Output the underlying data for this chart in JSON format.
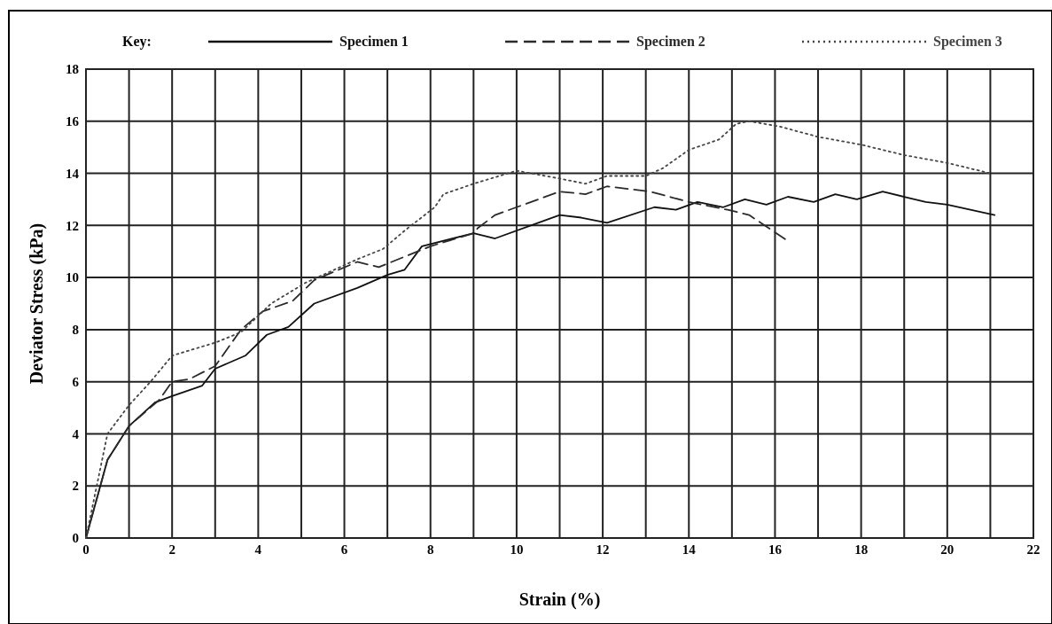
{
  "chart_data": {
    "type": "line",
    "xlabel": "Strain (%)",
    "ylabel": "Deviator Stress (kPa)",
    "legend_title": "Key:",
    "legend": "top",
    "grid": true,
    "marker": "none",
    "xlim": [
      0,
      22
    ],
    "ylim": [
      0,
      18
    ],
    "xticks": [
      0,
      {
        "value": 1,
        "label": null
      },
      2,
      {
        "value": 3,
        "label": null
      },
      4,
      {
        "value": 5,
        "label": null
      },
      6,
      {
        "value": 7,
        "label": null
      },
      8,
      {
        "value": 9,
        "label": null
      },
      10,
      {
        "value": 11,
        "label": null
      },
      12,
      {
        "value": 13,
        "label": null
      },
      14,
      {
        "value": 15,
        "label": null
      },
      16,
      {
        "value": 17,
        "label": null
      },
      18,
      {
        "value": 19,
        "label": null
      },
      20,
      {
        "value": 21,
        "label": null
      },
      22
    ],
    "yticks": [
      0,
      2,
      4,
      6,
      8,
      10,
      12,
      14,
      16,
      18
    ],
    "series": [
      {
        "name": "Specimen 1",
        "color": "#111111",
        "line_style": "solid",
        "x": [
          0,
          0.5,
          1,
          1.6,
          2,
          2.7,
          3,
          3.7,
          4.2,
          4.7,
          5.3,
          6.3,
          7,
          7.4,
          7.8,
          9,
          9.5,
          11,
          11.5,
          12.1,
          13.2,
          13.7,
          14.2,
          14.8,
          15.3,
          15.8,
          16.3,
          16.9,
          17.4,
          17.9,
          18.5,
          19,
          19.5,
          20,
          21.1
        ],
        "values": [
          0,
          3,
          4.3,
          5.2,
          5.45,
          5.85,
          6.5,
          7,
          7.8,
          8.1,
          9,
          9.6,
          10.1,
          10.3,
          11.2,
          11.7,
          11.5,
          12.4,
          12.3,
          12.1,
          12.7,
          12.6,
          12.9,
          12.7,
          13,
          12.8,
          13.1,
          12.9,
          13.2,
          13,
          13.3,
          13.1,
          12.9,
          12.8,
          12.4
        ]
      },
      {
        "name": "Specimen 2",
        "color": "#2a2a2a",
        "line_style": "dashed",
        "x": [
          0,
          0.5,
          1,
          1.7,
          2,
          2.4,
          3,
          3.6,
          4.1,
          4.8,
          5.3,
          6.3,
          6.8,
          7.4,
          8,
          9,
          9.1,
          9.5,
          11,
          11.6,
          12.1,
          13.1,
          14,
          14.9,
          15.4,
          16.3
        ],
        "values": [
          0,
          3,
          4.3,
          5.3,
          6,
          6.1,
          6.6,
          8,
          8.7,
          9.1,
          9.9,
          10.6,
          10.4,
          10.8,
          11.2,
          11.7,
          11.9,
          12.4,
          13.3,
          13.2,
          13.5,
          13.3,
          12.9,
          12.6,
          12.4,
          11.4
        ]
      },
      {
        "name": "Specimen 3",
        "color": "#444444",
        "line_style": "dotted",
        "x": [
          0,
          0.25,
          0.5,
          1,
          1.5,
          2,
          3,
          3.6,
          4.3,
          5.1,
          6.3,
          6.9,
          7.4,
          8.1,
          8.3,
          9,
          10,
          11,
          11.6,
          12.1,
          13,
          13.4,
          14,
          14.7,
          15.1,
          15.4,
          16.1,
          17,
          18,
          19,
          20,
          21
        ],
        "values": [
          0,
          2,
          4,
          5.1,
          6,
          7,
          7.5,
          7.9,
          9,
          9.8,
          10.7,
          11.1,
          11.8,
          12.7,
          13.2,
          13.6,
          14.1,
          13.8,
          13.6,
          13.9,
          13.9,
          14.2,
          14.9,
          15.3,
          15.9,
          16,
          15.8,
          15.4,
          15.1,
          14.7,
          14.4,
          14
        ]
      }
    ]
  }
}
